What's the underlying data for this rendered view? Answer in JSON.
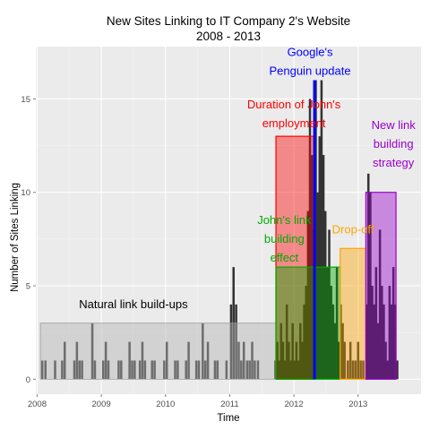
{
  "chart_data": {
    "type": "bar",
    "title": "New Sites Linking to IT Company 2's Website",
    "subtitle": "2008 - 2013",
    "xlabel": "Time",
    "ylabel": "Number of Sites Linking",
    "xlim": [
      2007.98,
      2013.98
    ],
    "ylim": [
      -0.8,
      17.8
    ],
    "x_ticks": [
      2008,
      2009,
      2010,
      2011,
      2012,
      2013
    ],
    "x_tick_labels": [
      "2008",
      "2009",
      "2010",
      "2011",
      "2012",
      "2013"
    ],
    "y_ticks": [
      0,
      5,
      10,
      15
    ],
    "y_tick_labels": [
      "0",
      "5",
      "10",
      "15"
    ],
    "grid": true,
    "colors": {
      "panel": "#ebebeb",
      "grid_major": "#ffffff",
      "grid_minor": "#f5f5f5",
      "bars": "#333333",
      "natural": "#b3b3b3",
      "employment": "#ff0000",
      "penguin": "#0000ff",
      "johns_effect": "#00aa00",
      "dropoff": "#ffa500",
      "new_strategy": "#9900cc"
    },
    "bars": {
      "width_years": 0.035,
      "x": [
        2008.08,
        2008.13,
        2008.28,
        2008.39,
        2008.43,
        2008.58,
        2008.62,
        2008.66,
        2008.7,
        2008.86,
        2008.9,
        2009.03,
        2009.07,
        2009.11,
        2009.27,
        2009.31,
        2009.44,
        2009.48,
        2009.52,
        2009.6,
        2009.64,
        2009.68,
        2009.79,
        2009.83,
        2009.98,
        2010.02,
        2010.15,
        2010.19,
        2010.32,
        2010.36,
        2010.48,
        2010.52,
        2010.58,
        2010.62,
        2010.66,
        2010.77,
        2010.81,
        2010.95,
        2011.02,
        2011.06,
        2011.1,
        2011.14,
        2011.18,
        2011.22,
        2011.27,
        2011.31,
        2011.35,
        2011.39,
        2011.44,
        2011.71,
        2011.74,
        2011.77,
        2011.8,
        2011.83,
        2011.86,
        2011.89,
        2011.92,
        2011.95,
        2011.98,
        2012.01,
        2012.04,
        2012.07,
        2012.1,
        2012.13,
        2012.16,
        2012.19,
        2012.22,
        2012.25,
        2012.28,
        2012.31,
        2012.34,
        2012.37,
        2012.4,
        2012.43,
        2012.46,
        2012.49,
        2012.52,
        2012.55,
        2012.58,
        2012.61,
        2012.64,
        2012.67,
        2012.7,
        2012.73,
        2012.76,
        2012.79,
        2012.84,
        2012.88,
        2012.92,
        2012.96,
        2013,
        2013.04,
        2013.08,
        2013.13,
        2013.16,
        2013.19,
        2013.22,
        2013.25,
        2013.28,
        2013.31,
        2013.34,
        2013.37,
        2013.4,
        2013.43,
        2013.46,
        2013.49,
        2013.52,
        2013.55,
        2013.58,
        2013.61
      ],
      "values": [
        1,
        1,
        1,
        1,
        2,
        1,
        2,
        1,
        1,
        3,
        1,
        1,
        2,
        1,
        1,
        1,
        2,
        1,
        1,
        1,
        2,
        1,
        1,
        1,
        1,
        2,
        1,
        1,
        1,
        2,
        1,
        1,
        3,
        1,
        2,
        1,
        1,
        1,
        4,
        6,
        4,
        2,
        1,
        2,
        1,
        1,
        2,
        1,
        1,
        1,
        2,
        1,
        3,
        2,
        1,
        4,
        2,
        1,
        3,
        1,
        2,
        1,
        3,
        2,
        4,
        5,
        9,
        15,
        12,
        8,
        16,
        10,
        13,
        16,
        12,
        9,
        6,
        8,
        5,
        4,
        3,
        6,
        2,
        4,
        3,
        2,
        1,
        2,
        1,
        1,
        2,
        1,
        1,
        4,
        11,
        10,
        5,
        4,
        6,
        3,
        8,
        5,
        4,
        2,
        1,
        5,
        4,
        6,
        4,
        1
      ]
    },
    "regions": [
      {
        "key": "natural",
        "x0": 2008.05,
        "x1": 2011.72,
        "y0": 0,
        "y1": 3
      },
      {
        "key": "employment",
        "x0": 2011.72,
        "x1": 2012.32,
        "y0": 0,
        "y1": 13
      },
      {
        "key": "johns_effect",
        "x0": 2011.72,
        "x1": 2012.72,
        "y0": 0,
        "y1": 6
      },
      {
        "key": "dropoff",
        "x0": 2012.72,
        "x1": 2013.12,
        "y0": 0,
        "y1": 7
      },
      {
        "key": "new_strategy",
        "x0": 2013.12,
        "x1": 2013.59,
        "y0": 0,
        "y1": 10
      }
    ],
    "penguin_line": {
      "x": 2012.32,
      "y0": 0,
      "y1": 16
    },
    "annotations": [
      {
        "key": "natural",
        "lines": [
          "Natural link build-ups"
        ],
        "x": 2009.5,
        "y": 3.8
      },
      {
        "key": "employment",
        "lines": [
          "Duration of John's",
          "employment"
        ],
        "x": 2012.0,
        "y": 14.5
      },
      {
        "key": "penguin",
        "lines": [
          "Google's",
          "Penguin update"
        ],
        "x": 2012.25,
        "y": 17.3
      },
      {
        "key": "johns_effect",
        "lines": [
          "John's link",
          "building",
          "effect"
        ],
        "x": 2011.85,
        "y": 8.3
      },
      {
        "key": "dropoff",
        "lines": [
          "Drop-off"
        ],
        "x": 2012.92,
        "y": 7.8
      },
      {
        "key": "new_strategy",
        "lines": [
          "New link",
          "building",
          "strategy"
        ],
        "x": 2013.55,
        "y": 13.4
      }
    ]
  }
}
